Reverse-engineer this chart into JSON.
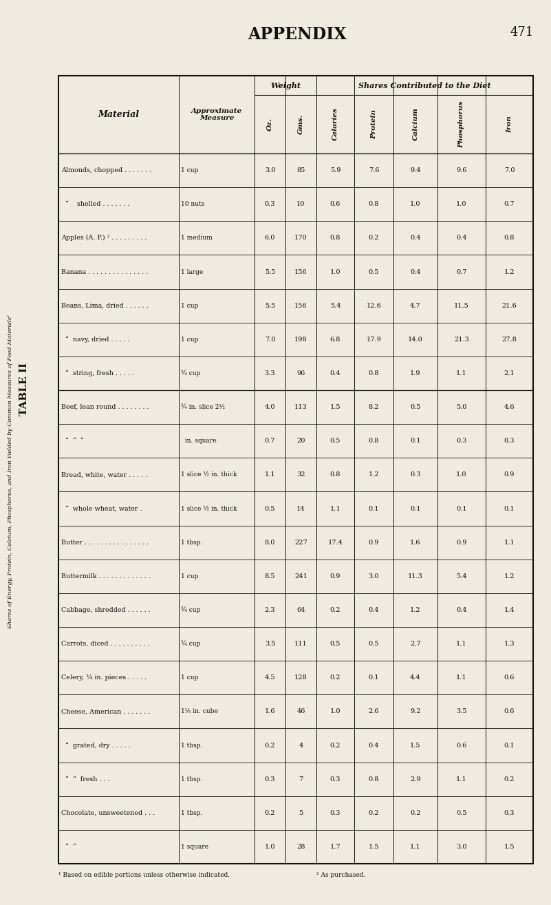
{
  "page_header": "APPENDIX",
  "page_number": "471",
  "table_title": "TABLE II",
  "rotated_side_text": "Shares of Energy, Protein, Calcium, Phosphorus, and Iron Yielded by Common Measures of Food Materials¹",
  "col_group1": "Weight",
  "col_group2": "Shares Contributed to the Diet",
  "col_headers": [
    "Material",
    "Approximate\nMeasure",
    "Oz.",
    "Gms.",
    "Calories",
    "Protein",
    "Calcium",
    "Phosphorus",
    "Iron"
  ],
  "rows": [
    [
      "Almonds, chopped . . . . . . .",
      "1 cup",
      "3.0",
      "85",
      "5.9",
      "7.6",
      "9.4",
      "9.6",
      "7.0"
    ],
    [
      "  “    shelled . . . . . . .",
      "10 nuts",
      "0.3",
      "10",
      "0.6",
      "0.8",
      "1.0",
      "1.0",
      "0.7"
    ],
    [
      "Apples (A. P.) ² . . . . . . . . .",
      "1 medium",
      "6.0",
      "170",
      "0.8",
      "0.2",
      "0.4",
      "0.4",
      "0.8"
    ],
    [
      "Banana . . . . . . . . . . . . . . .",
      "1 large",
      "5.5",
      "156",
      "1.0",
      "0.5",
      "0.4",
      "0.7",
      "1.2"
    ],
    [
      "Beans, Lima, dried . . . . . .",
      "1 cup",
      "5.5",
      "156",
      "5.4",
      "12.6",
      "4.7",
      "11.5",
      "21.6"
    ],
    [
      "  “  navy, dried . . . . .",
      "1 cup",
      "7.0",
      "198",
      "6.8",
      "17.9",
      "14.0",
      "21.3",
      "27.8"
    ],
    [
      "  “  string, fresh . . . . .",
      "¾ cup",
      "3.3",
      "96",
      "0.4",
      "0.8",
      "1.9",
      "1.1",
      "2.1"
    ],
    [
      "Beef, lean round . . . . . . . .",
      "¾ in. slice 2¹⁄₂",
      "4.0",
      "113",
      "1.5",
      "8.2",
      "0.5",
      "5.0",
      "4.6"
    ],
    [
      "  “  “  “",
      "  in. square",
      "0.7",
      "20",
      "0.5",
      "0.8",
      "0.1",
      "0.3",
      "0.3"
    ],
    [
      "Bread, white, water . . . . .",
      "1 slice ½ in. thick",
      "1.1",
      "32",
      "0.8",
      "1.2",
      "0.3",
      "1.0",
      "0.9"
    ],
    [
      "  “  whole wheat, water .",
      "1 slice ½ in. thick",
      "0.5",
      "14",
      "1.1",
      "0.1",
      "0.1",
      "0.1",
      "0.1"
    ],
    [
      "Butter . . . . . . . . . . . . . . . .",
      "1 tbsp.",
      "8.0",
      "227",
      "17.4",
      "0.9",
      "1.6",
      "0.9",
      "1.1"
    ],
    [
      "Buttermilk . . . . . . . . . . . . .",
      "1 cup",
      "8.5",
      "241",
      "0.9",
      "3.0",
      "11.3",
      "5.4",
      "1.2"
    ],
    [
      "Cabbage, shredded . . . . . .",
      "¾ cup",
      "2.3",
      "64",
      "0.2",
      "0.4",
      "1.2",
      "0.4",
      "1.4"
    ],
    [
      "Carrots, diced . . . . . . . . . .",
      "¾ cup",
      "3.5",
      "111",
      "0.5",
      "0.5",
      "2.7",
      "1.1",
      "1.3"
    ],
    [
      "Celery, ¼ in. pieces . . . . .",
      "1 cup",
      "4.5",
      "128",
      "0.2",
      "0.1",
      "4.4",
      "1.1",
      "0.6"
    ],
    [
      "Cheese, American . . . . . . .",
      "1¹⁄₅ in. cube",
      "1.6",
      "46",
      "1.0",
      "2.6",
      "9.2",
      "3.5",
      "0.6"
    ],
    [
      "  “  grated, dry . . . . .",
      "1 tbsp.",
      "0.2",
      "4",
      "0.2",
      "0.4",
      "1.5",
      "0.6",
      "0.1"
    ],
    [
      "  “  “  fresh . . .",
      "1 tbsp.",
      "0.3",
      "7",
      "0.3",
      "0.8",
      "2.9",
      "1.1",
      "0.2"
    ],
    [
      "Chocolate, unsweetened . . .",
      "1 tbsp.",
      "0.2",
      "5",
      "0.3",
      "0.2",
      "0.2",
      "0.5",
      "0.3"
    ],
    [
      "  “  “",
      "1 square",
      "1.0",
      "28",
      "1.7",
      "1.5",
      "1.1",
      "3.0",
      "1.5"
    ]
  ],
  "footnote1": "¹ Based on edible portions unless otherwise indicated.",
  "footnote2": "² As purchased.",
  "bg_color": "#f0ebe0",
  "text_color": "#111111",
  "line_color": "#111111"
}
